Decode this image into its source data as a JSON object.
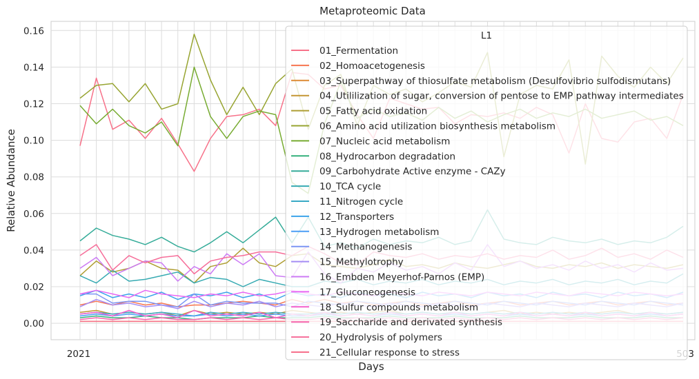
{
  "chart_data": {
    "type": "line",
    "title": "Metaproteomic Data",
    "xlabel": "Days",
    "ylabel": "Relative Abundance",
    "ylim": [
      -0.009,
      0.165
    ],
    "yticks": [
      0.0,
      0.02,
      0.04,
      0.06,
      0.08,
      0.1,
      0.12,
      0.14,
      0.16
    ],
    "ytick_labels": [
      "0.00",
      "0.02",
      "0.04",
      "0.06",
      "0.08",
      "0.10",
      "0.12",
      "0.14",
      "0.16"
    ],
    "x_tick_labels_visible": [
      "2021",
      "503"
    ],
    "grid": true,
    "legend": {
      "title": "L1",
      "placement": "upper-right"
    },
    "n_points": 38,
    "series": [
      {
        "name": "01_Fermentation",
        "color": "#f77189",
        "values": [
          0.097,
          0.134,
          0.106,
          0.111,
          0.101,
          0.112,
          0.098,
          0.083,
          0.101,
          0.113,
          0.114,
          0.117,
          0.108,
          0.137,
          0.136,
          0.128,
          0.13,
          0.114,
          0.101,
          0.123,
          0.12,
          0.117,
          0.118,
          0.109,
          0.114,
          0.113,
          0.115,
          0.112,
          0.118,
          0.114,
          0.093,
          0.12,
          0.101,
          0.099,
          0.11,
          0.112,
          0.101,
          0.125
        ]
      },
      {
        "name": "02_Homoacetogenesis",
        "color": "#f7754f",
        "values": [
          0.01,
          0.012,
          0.01,
          0.012,
          0.01,
          0.011,
          0.009,
          0.01,
          0.01,
          0.011,
          0.012,
          0.011,
          0.01,
          0.013,
          0.011,
          0.013,
          0.011,
          0.012,
          0.01,
          0.011,
          0.012,
          0.01,
          0.011,
          0.012,
          0.01,
          0.011,
          0.012,
          0.01,
          0.011,
          0.012,
          0.01,
          0.011,
          0.012,
          0.01,
          0.011,
          0.012,
          0.01,
          0.011
        ]
      },
      {
        "name": "03_Superpathway of thiosulfate metabolism (Desulfovibrio sulfodismutans)",
        "color": "#dc8932",
        "values": [
          0.001,
          0.001,
          0.001,
          0.001,
          0.001,
          0.001,
          0.001,
          0.001,
          0.001,
          0.001,
          0.001,
          0.001,
          0.001,
          0.001,
          0.001,
          0.001,
          0.001,
          0.001,
          0.001,
          0.001,
          0.001,
          0.001,
          0.001,
          0.001,
          0.001,
          0.001,
          0.001,
          0.001,
          0.001,
          0.001,
          0.001,
          0.001,
          0.001,
          0.001,
          0.001,
          0.001,
          0.001,
          0.001
        ]
      },
      {
        "name": "04_Utililization of sugar, conversion of pentose to EMP pathway intermediates",
        "color": "#c39532",
        "values": [
          0.006,
          0.007,
          0.005,
          0.006,
          0.005,
          0.006,
          0.004,
          0.007,
          0.005,
          0.006,
          0.005,
          0.006,
          0.005,
          0.007,
          0.006,
          0.005,
          0.006,
          0.005,
          0.006,
          0.007,
          0.005,
          0.006,
          0.005,
          0.006,
          0.005,
          0.006,
          0.007,
          0.005,
          0.006,
          0.005,
          0.006,
          0.005,
          0.006,
          0.007,
          0.005,
          0.006,
          0.005,
          0.006
        ]
      },
      {
        "name": "05_Fatty acid oxidation",
        "color": "#ae9d31",
        "values": [
          0.026,
          0.034,
          0.028,
          0.03,
          0.034,
          0.03,
          0.029,
          0.022,
          0.031,
          0.033,
          0.041,
          0.033,
          0.031,
          0.037,
          0.038,
          0.032,
          0.031,
          0.03,
          0.032,
          0.035,
          0.031,
          0.032,
          0.03,
          0.033,
          0.031,
          0.03,
          0.032,
          0.034,
          0.031,
          0.03,
          0.032,
          0.031,
          0.033,
          0.03,
          0.032,
          0.031,
          0.03,
          0.032
        ]
      },
      {
        "name": "06_Amino acid utilization biosynthesis metabolism",
        "color": "#97a431",
        "values": [
          0.123,
          0.13,
          0.131,
          0.121,
          0.131,
          0.117,
          0.12,
          0.158,
          0.133,
          0.114,
          0.129,
          0.114,
          0.131,
          0.139,
          0.106,
          0.13,
          0.136,
          0.108,
          0.13,
          0.125,
          0.128,
          0.121,
          0.126,
          0.132,
          0.129,
          0.148,
          0.091,
          0.125,
          0.13,
          0.128,
          0.144,
          0.087,
          0.146,
          0.135,
          0.129,
          0.14,
          0.131,
          0.145
        ]
      },
      {
        "name": "07_Nucleic acid metabolism",
        "color": "#77ab31",
        "values": [
          0.119,
          0.109,
          0.117,
          0.108,
          0.104,
          0.11,
          0.097,
          0.14,
          0.113,
          0.101,
          0.113,
          0.116,
          0.114,
          0.077,
          0.071,
          0.109,
          0.132,
          0.112,
          0.117,
          0.113,
          0.115,
          0.111,
          0.118,
          0.112,
          0.116,
          0.11,
          0.114,
          0.117,
          0.112,
          0.115,
          0.113,
          0.117,
          0.112,
          0.114,
          0.116,
          0.111,
          0.113,
          0.108
        ]
      },
      {
        "name": "08_Hydrocarbon degradation",
        "color": "#33b07a",
        "values": [
          0.003,
          0.004,
          0.003,
          0.003,
          0.004,
          0.003,
          0.003,
          0.002,
          0.003,
          0.003,
          0.003,
          0.004,
          0.003,
          0.003,
          0.003,
          0.004,
          0.003,
          0.003,
          0.003,
          0.004,
          0.003,
          0.003,
          0.003,
          0.004,
          0.003,
          0.003,
          0.003,
          0.004,
          0.003,
          0.003,
          0.003,
          0.004,
          0.003,
          0.003,
          0.003,
          0.004,
          0.003,
          0.003
        ]
      },
      {
        "name": "09_Carbohydrate Active enzyme - CAZy",
        "color": "#35ac99",
        "values": [
          0.045,
          0.052,
          0.048,
          0.046,
          0.043,
          0.047,
          0.042,
          0.039,
          0.044,
          0.05,
          0.044,
          0.051,
          0.058,
          0.044,
          0.058,
          0.042,
          0.044,
          0.041,
          0.046,
          0.043,
          0.045,
          0.044,
          0.047,
          0.043,
          0.045,
          0.062,
          0.046,
          0.044,
          0.043,
          0.047,
          0.045,
          0.044,
          0.046,
          0.043,
          0.045,
          0.044,
          0.047,
          0.053
        ]
      },
      {
        "name": "10_TCA cycle",
        "color": "#36aab2",
        "values": [
          0.026,
          0.022,
          0.029,
          0.023,
          0.024,
          0.026,
          0.028,
          0.022,
          0.025,
          0.024,
          0.02,
          0.024,
          0.022,
          0.02,
          0.02,
          0.023,
          0.022,
          0.024,
          0.021,
          0.023,
          0.022,
          0.024,
          0.021,
          0.023,
          0.022,
          0.024,
          0.021,
          0.023,
          0.022,
          0.024,
          0.021,
          0.023,
          0.022,
          0.024,
          0.021,
          0.023,
          0.022,
          0.027
        ]
      },
      {
        "name": "11_Nitrogen cycle",
        "color": "#38a9c5",
        "values": [
          0.005,
          0.006,
          0.005,
          0.006,
          0.005,
          0.006,
          0.005,
          0.004,
          0.006,
          0.005,
          0.006,
          0.005,
          0.006,
          0.005,
          0.005,
          0.006,
          0.005,
          0.006,
          0.005,
          0.006,
          0.005,
          0.006,
          0.005,
          0.006,
          0.005,
          0.006,
          0.005,
          0.006,
          0.005,
          0.006,
          0.005,
          0.006,
          0.005,
          0.006,
          0.005,
          0.006,
          0.005,
          0.006
        ]
      },
      {
        "name": "12_Transporters",
        "color": "#3ba3ea",
        "values": [
          0.015,
          0.018,
          0.014,
          0.016,
          0.014,
          0.017,
          0.013,
          0.016,
          0.015,
          0.017,
          0.014,
          0.016,
          0.013,
          0.017,
          0.015,
          0.016,
          0.014,
          0.017,
          0.015,
          0.016,
          0.014,
          0.017,
          0.015,
          0.016,
          0.014,
          0.017,
          0.015,
          0.016,
          0.014,
          0.017,
          0.015,
          0.016,
          0.014,
          0.017,
          0.015,
          0.016,
          0.014,
          0.017
        ]
      },
      {
        "name": "13_Hydrogen metabolism",
        "color": "#4a9df5",
        "values": [
          0.004,
          0.005,
          0.004,
          0.005,
          0.004,
          0.005,
          0.004,
          0.004,
          0.005,
          0.004,
          0.005,
          0.004,
          0.005,
          0.004,
          0.004,
          0.005,
          0.004,
          0.005,
          0.004,
          0.005,
          0.004,
          0.005,
          0.004,
          0.005,
          0.004,
          0.005,
          0.004,
          0.005,
          0.004,
          0.005,
          0.004,
          0.005,
          0.004,
          0.005,
          0.004,
          0.005,
          0.004,
          0.005
        ]
      },
      {
        "name": "14_Methanogenesis",
        "color": "#7b95f4",
        "values": [
          0.016,
          0.016,
          0.011,
          0.012,
          0.012,
          0.01,
          0.009,
          0.016,
          0.01,
          0.012,
          0.011,
          0.011,
          0.011,
          0.009,
          0.012,
          0.011,
          0.01,
          0.012,
          0.011,
          0.01,
          0.012,
          0.011,
          0.01,
          0.012,
          0.011,
          0.01,
          0.012,
          0.011,
          0.01,
          0.012,
          0.011,
          0.01,
          0.012,
          0.011,
          0.01,
          0.012,
          0.011,
          0.01
        ]
      },
      {
        "name": "15_Methylotrophy",
        "color": "#a48cf4",
        "values": [
          0.009,
          0.013,
          0.01,
          0.011,
          0.009,
          0.01,
          0.008,
          0.012,
          0.009,
          0.011,
          0.01,
          0.012,
          0.009,
          0.011,
          0.01,
          0.009,
          0.011,
          0.01,
          0.009,
          0.011,
          0.01,
          0.009,
          0.011,
          0.01,
          0.009,
          0.011,
          0.01,
          0.009,
          0.011,
          0.01,
          0.009,
          0.011,
          0.01,
          0.009,
          0.011,
          0.01,
          0.009,
          0.011
        ]
      },
      {
        "name": "16_Embden Meyerhof-Parnos (EMP)",
        "color": "#cc7af4",
        "values": [
          0.03,
          0.036,
          0.026,
          0.03,
          0.034,
          0.033,
          0.023,
          0.031,
          0.027,
          0.038,
          0.032,
          0.038,
          0.026,
          0.025,
          0.039,
          0.027,
          0.022,
          0.03,
          0.028,
          0.033,
          0.029,
          0.031,
          0.027,
          0.033,
          0.029,
          0.043,
          0.031,
          0.034,
          0.03,
          0.032,
          0.029,
          0.034,
          0.03,
          0.032,
          0.028,
          0.033,
          0.029,
          0.03
        ]
      },
      {
        "name": "17_Gluconeogenesis",
        "color": "#e866f4",
        "values": [
          0.016,
          0.018,
          0.016,
          0.014,
          0.018,
          0.016,
          0.015,
          0.014,
          0.016,
          0.015,
          0.017,
          0.015,
          0.016,
          0.018,
          0.016,
          0.015,
          0.017,
          0.016,
          0.015,
          0.017,
          0.016,
          0.015,
          0.017,
          0.016,
          0.015,
          0.017,
          0.016,
          0.015,
          0.017,
          0.016,
          0.015,
          0.017,
          0.016,
          0.015,
          0.017,
          0.016,
          0.015,
          0.016
        ]
      },
      {
        "name": "18_Sulfur compounds metabolism",
        "color": "#f45fcc",
        "values": [
          0.005,
          0.006,
          0.004,
          0.007,
          0.004,
          0.005,
          0.003,
          0.007,
          0.004,
          0.005,
          0.004,
          0.006,
          0.003,
          0.005,
          0.004,
          0.006,
          0.004,
          0.005,
          0.004,
          0.006,
          0.004,
          0.005,
          0.004,
          0.006,
          0.004,
          0.005,
          0.004,
          0.006,
          0.004,
          0.005,
          0.004,
          0.006,
          0.004,
          0.005,
          0.004,
          0.006,
          0.004,
          0.005
        ]
      },
      {
        "name": "19_Saccharide and derivated synthesis",
        "color": "#f565ac",
        "values": [
          0.002,
          0.003,
          0.002,
          0.003,
          0.002,
          0.003,
          0.002,
          0.002,
          0.003,
          0.002,
          0.003,
          0.002,
          0.003,
          0.002,
          0.002,
          0.003,
          0.002,
          0.003,
          0.002,
          0.003,
          0.002,
          0.003,
          0.002,
          0.003,
          0.002,
          0.003,
          0.002,
          0.003,
          0.002,
          0.003,
          0.002,
          0.003,
          0.002,
          0.003,
          0.002,
          0.003,
          0.002,
          0.003
        ]
      },
      {
        "name": "20_Hydrolysis of polymers",
        "color": "#f66c98",
        "values": [
          0.037,
          0.043,
          0.029,
          0.037,
          0.033,
          0.036,
          0.037,
          0.027,
          0.034,
          0.036,
          0.037,
          0.039,
          0.039,
          0.037,
          0.042,
          0.038,
          0.033,
          0.032,
          0.039,
          0.037,
          0.036,
          0.038,
          0.035,
          0.037,
          0.036,
          0.038,
          0.035,
          0.037,
          0.036,
          0.04,
          0.035,
          0.037,
          0.041,
          0.036,
          0.038,
          0.035,
          0.04,
          0.036
        ]
      },
      {
        "name": "21_Cellular response to stress",
        "color": "#f7708b",
        "values": [
          0.001,
          0.001,
          0.001,
          0.001,
          0.001,
          0.001,
          0.001,
          0.001,
          0.001,
          0.001,
          0.001,
          0.001,
          0.001,
          0.001,
          0.001,
          0.001,
          0.001,
          0.001,
          0.001,
          0.001,
          0.001,
          0.001,
          0.001,
          0.001,
          0.001,
          0.001,
          0.001,
          0.001,
          0.001,
          0.001,
          0.001,
          0.001,
          0.001,
          0.001,
          0.001,
          0.001,
          0.001,
          0.001
        ]
      }
    ]
  }
}
